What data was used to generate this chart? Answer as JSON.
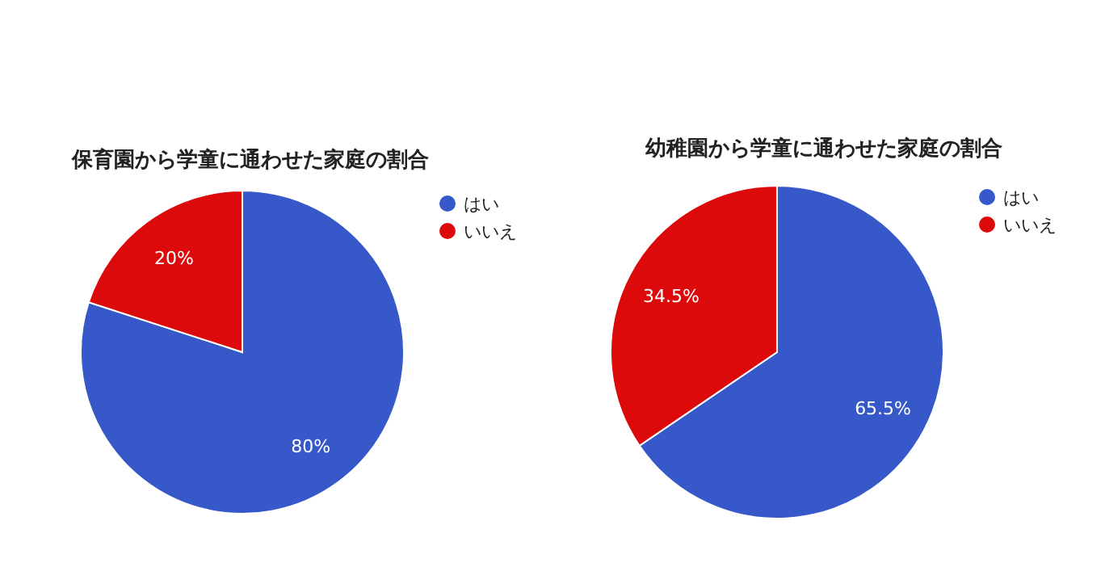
{
  "chart_data": [
    {
      "type": "pie",
      "title": "保育園から学童に通わせた家庭の割合",
      "categories": [
        "はい",
        "いいえ"
      ],
      "values": [
        80,
        20
      ],
      "colors": [
        "#3658c8",
        "#dc0a0a"
      ],
      "value_labels": [
        "80%",
        "20%"
      ],
      "legend": "top right"
    },
    {
      "type": "pie",
      "title": "幼稚園から学童に通わせた家庭の割合",
      "categories": [
        "はい",
        "いいえ"
      ],
      "values": [
        65.5,
        34.5
      ],
      "colors": [
        "#3658c8",
        "#dc0a0a"
      ],
      "value_labels": [
        "65.5%",
        "34.5%"
      ],
      "legend": "top right"
    }
  ]
}
